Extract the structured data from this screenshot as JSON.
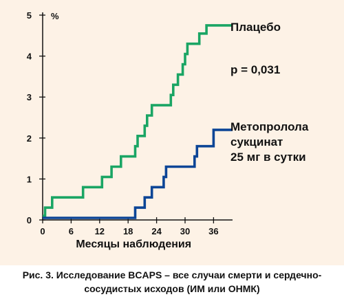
{
  "chart_data": {
    "type": "line",
    "step": true,
    "x_ticks": [
      0,
      6,
      12,
      18,
      24,
      30,
      36
    ],
    "y_ticks": [
      0,
      1,
      2,
      3,
      4,
      5
    ],
    "xlim": [
      0,
      40
    ],
    "ylim": [
      0,
      5
    ],
    "xlabel": "Месяцы наблюдения",
    "y_unit": "%",
    "grid": false,
    "annotation": "p = 0,031",
    "series": [
      {
        "name_lines": [
          "Плацебо"
        ],
        "color": "#1aa564",
        "points": [
          [
            0,
            0.1
          ],
          [
            0.5,
            0.1
          ],
          [
            0.5,
            0.3
          ],
          [
            2,
            0.3
          ],
          [
            2,
            0.55
          ],
          [
            8.5,
            0.55
          ],
          [
            8.5,
            0.8
          ],
          [
            12.5,
            0.8
          ],
          [
            12.5,
            1.05
          ],
          [
            14.5,
            1.05
          ],
          [
            14.5,
            1.3
          ],
          [
            16.5,
            1.3
          ],
          [
            16.5,
            1.55
          ],
          [
            19.5,
            1.55
          ],
          [
            19.5,
            1.8
          ],
          [
            20,
            1.8
          ],
          [
            20,
            2.05
          ],
          [
            21.5,
            2.05
          ],
          [
            21.5,
            2.3
          ],
          [
            22,
            2.3
          ],
          [
            22,
            2.55
          ],
          [
            23,
            2.55
          ],
          [
            23,
            2.8
          ],
          [
            27,
            2.8
          ],
          [
            27,
            3.05
          ],
          [
            27.5,
            3.05
          ],
          [
            27.5,
            3.3
          ],
          [
            28.5,
            3.3
          ],
          [
            28.5,
            3.55
          ],
          [
            29.5,
            3.55
          ],
          [
            29.5,
            3.8
          ],
          [
            30,
            3.8
          ],
          [
            30,
            4.05
          ],
          [
            30.5,
            4.05
          ],
          [
            30.5,
            4.3
          ],
          [
            33,
            4.3
          ],
          [
            33,
            4.55
          ],
          [
            34.5,
            4.55
          ],
          [
            34.5,
            4.75
          ],
          [
            40,
            4.75
          ]
        ]
      },
      {
        "name_lines": [
          "Метопролола",
          "сукцинат",
          "25 мг в сутки"
        ],
        "color": "#0c4596",
        "points": [
          [
            0,
            0.05
          ],
          [
            19.5,
            0.05
          ],
          [
            19.5,
            0.3
          ],
          [
            21.5,
            0.3
          ],
          [
            21.5,
            0.55
          ],
          [
            23,
            0.55
          ],
          [
            23,
            0.8
          ],
          [
            25.5,
            0.8
          ],
          [
            25.5,
            1.05
          ],
          [
            26,
            1.05
          ],
          [
            26,
            1.3
          ],
          [
            32,
            1.3
          ],
          [
            32,
            1.55
          ],
          [
            32.5,
            1.55
          ],
          [
            32.5,
            1.8
          ],
          [
            36,
            1.8
          ],
          [
            36,
            2.2
          ],
          [
            40,
            2.2
          ]
        ]
      }
    ]
  },
  "caption": {
    "line1": "Рис. 3. Исследование BCAPS – все случаи смерти и сердечно-",
    "line2": "сосудистых исходов (ИМ или ОНМК)"
  }
}
